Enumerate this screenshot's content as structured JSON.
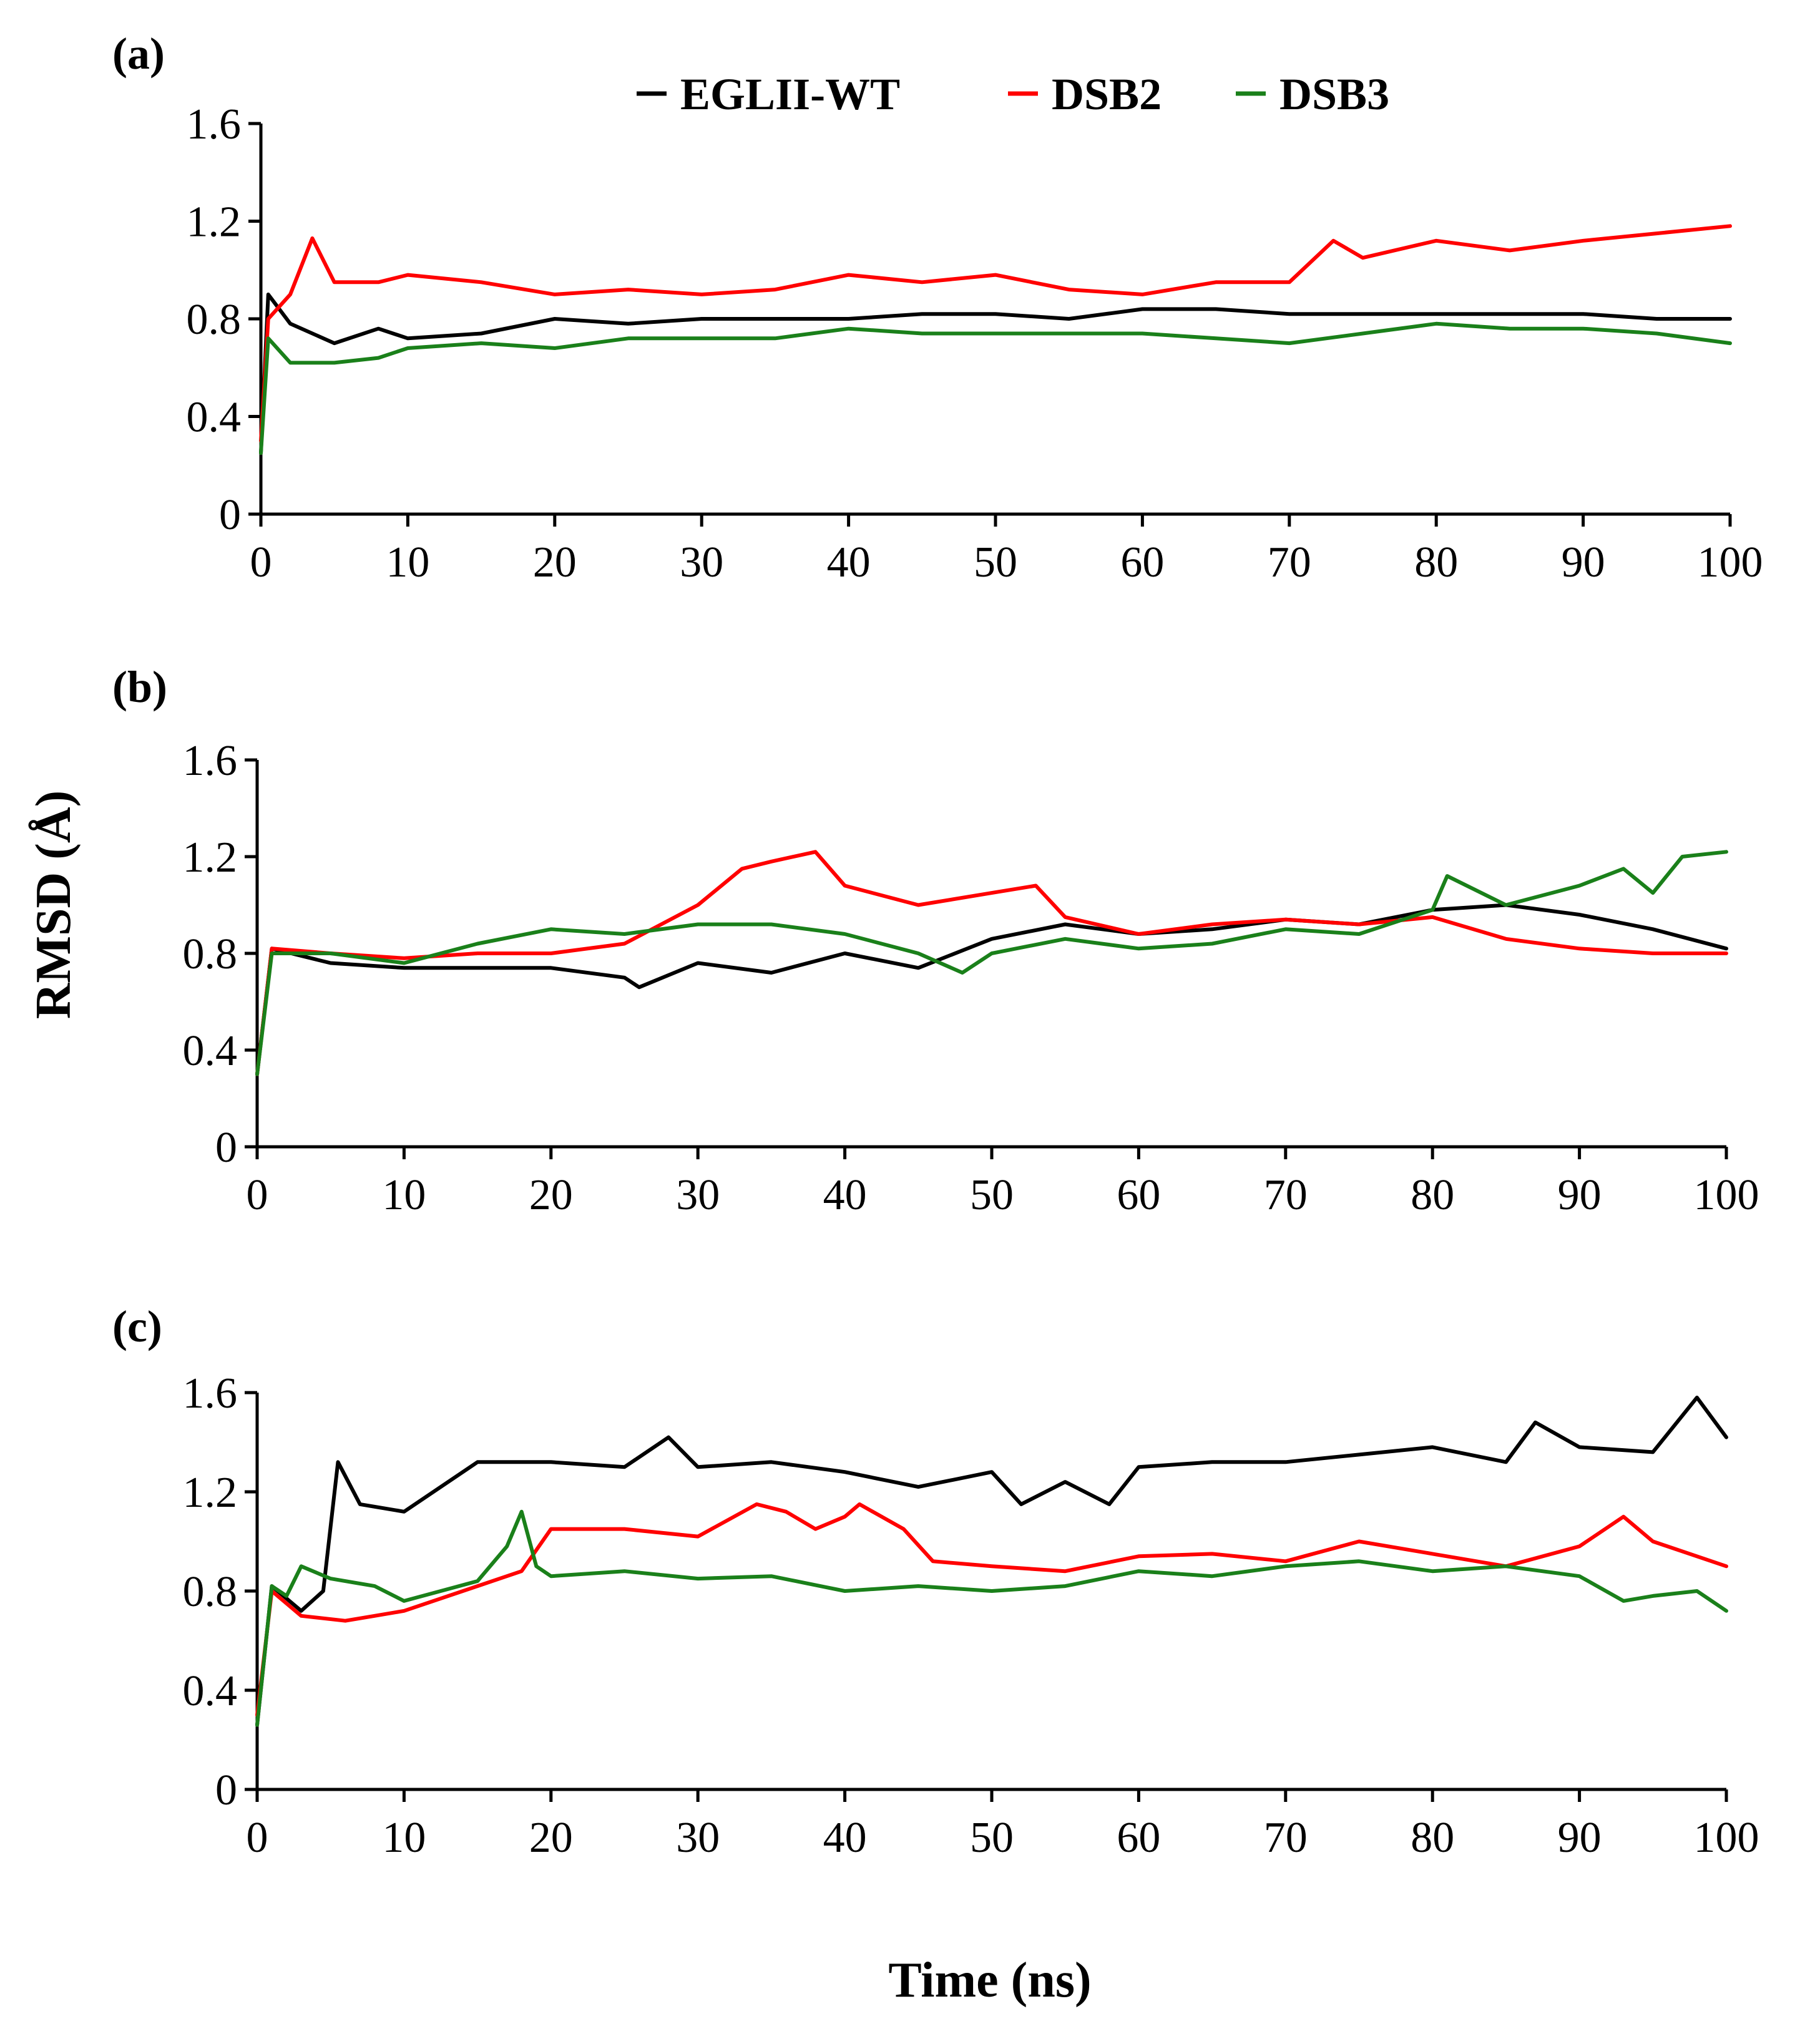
{
  "figure": {
    "xlabel": "Time (ns)",
    "ylabel": "RMSD (Å)"
  },
  "legend": [
    {
      "name": "EGLII-WT",
      "color": "#000000"
    },
    {
      "name": "DSB2",
      "color": "#ff0000"
    },
    {
      "name": "DSB3",
      "color": "#1a801a"
    }
  ],
  "chart_data": [
    {
      "type": "line",
      "panel": "(a)",
      "xlabel": "Time (ns)",
      "ylabel": "RMSD (Å)",
      "xlim": [
        0,
        100
      ],
      "ylim": [
        0,
        1.6
      ],
      "xticks": [
        "0",
        "10",
        "20",
        "30",
        "40",
        "50",
        "60",
        "70",
        "80",
        "90",
        "100"
      ],
      "yticks": [
        "0",
        "0.4",
        "0.8",
        "1.2",
        "1.6"
      ],
      "series": [
        {
          "name": "EGLII-WT",
          "color": "#000000",
          "x": [
            0,
            0.5,
            2,
            5,
            8,
            10,
            15,
            20,
            25,
            30,
            35,
            40,
            45,
            50,
            55,
            60,
            65,
            70,
            75,
            80,
            85,
            90,
            95,
            100
          ],
          "y": [
            0.25,
            0.9,
            0.78,
            0.7,
            0.76,
            0.72,
            0.74,
            0.8,
            0.78,
            0.8,
            0.8,
            0.8,
            0.82,
            0.82,
            0.8,
            0.84,
            0.84,
            0.82,
            0.82,
            0.82,
            0.82,
            0.82,
            0.8,
            0.8
          ]
        },
        {
          "name": "DSB2",
          "color": "#ff0000",
          "x": [
            0,
            0.5,
            2,
            3.5,
            5,
            8,
            10,
            15,
            20,
            25,
            30,
            35,
            40,
            45,
            50,
            55,
            60,
            65,
            70,
            73,
            75,
            80,
            85,
            90,
            95,
            100
          ],
          "y": [
            0.3,
            0.8,
            0.9,
            1.13,
            0.95,
            0.95,
            0.98,
            0.95,
            0.9,
            0.92,
            0.9,
            0.92,
            0.98,
            0.95,
            0.98,
            0.92,
            0.9,
            0.95,
            0.95,
            1.12,
            1.05,
            1.12,
            1.08,
            1.12,
            1.15,
            1.18
          ]
        },
        {
          "name": "DSB3",
          "color": "#1a801a",
          "x": [
            0,
            0.5,
            2,
            5,
            8,
            10,
            15,
            20,
            25,
            30,
            35,
            40,
            45,
            50,
            55,
            60,
            65,
            70,
            75,
            80,
            85,
            90,
            95,
            100
          ],
          "y": [
            0.25,
            0.72,
            0.62,
            0.62,
            0.64,
            0.68,
            0.7,
            0.68,
            0.72,
            0.72,
            0.72,
            0.76,
            0.74,
            0.74,
            0.74,
            0.74,
            0.72,
            0.7,
            0.74,
            0.78,
            0.76,
            0.76,
            0.74,
            0.7
          ]
        }
      ]
    },
    {
      "type": "line",
      "panel": "(b)",
      "xlabel": "Time (ns)",
      "ylabel": "RMSD (Å)",
      "xlim": [
        0,
        100
      ],
      "ylim": [
        0,
        1.6
      ],
      "xticks": [
        "0",
        "10",
        "20",
        "30",
        "40",
        "50",
        "60",
        "70",
        "80",
        "90",
        "100"
      ],
      "yticks": [
        "0",
        "0.4",
        "0.8",
        "1.2",
        "1.6"
      ],
      "series": [
        {
          "name": "EGLII-WT",
          "color": "#000000",
          "x": [
            0,
            1,
            5,
            10,
            15,
            20,
            25,
            26,
            30,
            35,
            40,
            45,
            50,
            55,
            60,
            65,
            70,
            75,
            80,
            85,
            90,
            95,
            100
          ],
          "y": [
            0.3,
            0.82,
            0.76,
            0.74,
            0.74,
            0.74,
            0.7,
            0.66,
            0.76,
            0.72,
            0.8,
            0.74,
            0.86,
            0.92,
            0.88,
            0.9,
            0.94,
            0.92,
            0.98,
            1.0,
            0.96,
            0.9,
            0.82
          ]
        },
        {
          "name": "DSB2",
          "color": "#ff0000",
          "x": [
            0,
            1,
            5,
            10,
            15,
            20,
            25,
            30,
            33,
            35,
            38,
            40,
            45,
            50,
            53,
            55,
            60,
            65,
            70,
            75,
            80,
            85,
            90,
            95,
            100
          ],
          "y": [
            0.3,
            0.82,
            0.8,
            0.78,
            0.8,
            0.8,
            0.84,
            1.0,
            1.15,
            1.18,
            1.22,
            1.08,
            1.0,
            1.05,
            1.08,
            0.95,
            0.88,
            0.92,
            0.94,
            0.92,
            0.95,
            0.86,
            0.82,
            0.8,
            0.8
          ]
        },
        {
          "name": "DSB3",
          "color": "#1a801a",
          "x": [
            0,
            1,
            5,
            10,
            15,
            20,
            25,
            30,
            35,
            40,
            45,
            48,
            50,
            55,
            60,
            65,
            70,
            75,
            80,
            81,
            85,
            90,
            93,
            95,
            97,
            100
          ],
          "y": [
            0.3,
            0.8,
            0.8,
            0.76,
            0.84,
            0.9,
            0.88,
            0.92,
            0.92,
            0.88,
            0.8,
            0.72,
            0.8,
            0.86,
            0.82,
            0.84,
            0.9,
            0.88,
            0.98,
            1.12,
            1.0,
            1.08,
            1.15,
            1.05,
            1.2,
            1.22
          ]
        }
      ]
    },
    {
      "type": "line",
      "panel": "(c)",
      "xlabel": "Time (ns)",
      "ylabel": "RMSD (Å)",
      "xlim": [
        0,
        100
      ],
      "ylim": [
        0,
        1.6
      ],
      "xticks": [
        "0",
        "10",
        "20",
        "30",
        "40",
        "50",
        "60",
        "70",
        "80",
        "90",
        "100"
      ],
      "yticks": [
        "0",
        "0.4",
        "0.8",
        "1.2",
        "1.6"
      ],
      "series": [
        {
          "name": "EGLII-WT",
          "color": "#000000",
          "x": [
            0,
            1,
            3,
            4.5,
            5.5,
            7,
            10,
            15,
            20,
            25,
            28,
            30,
            35,
            40,
            45,
            50,
            52,
            55,
            58,
            60,
            65,
            70,
            75,
            80,
            85,
            87,
            90,
            95,
            98,
            100
          ],
          "y": [
            0.26,
            0.82,
            0.72,
            0.8,
            1.32,
            1.15,
            1.12,
            1.32,
            1.32,
            1.3,
            1.42,
            1.3,
            1.32,
            1.28,
            1.22,
            1.28,
            1.15,
            1.24,
            1.15,
            1.3,
            1.32,
            1.32,
            1.35,
            1.38,
            1.32,
            1.48,
            1.38,
            1.36,
            1.58,
            1.42
          ]
        },
        {
          "name": "DSB2",
          "color": "#ff0000",
          "x": [
            0,
            1,
            3,
            6,
            8,
            10,
            15,
            18,
            20,
            25,
            30,
            34,
            36,
            38,
            40,
            41,
            44,
            46,
            50,
            55,
            60,
            65,
            70,
            75,
            80,
            85,
            90,
            93,
            95,
            100
          ],
          "y": [
            0.3,
            0.8,
            0.7,
            0.68,
            0.7,
            0.72,
            0.82,
            0.88,
            1.05,
            1.05,
            1.02,
            1.15,
            1.12,
            1.05,
            1.1,
            1.15,
            1.05,
            0.92,
            0.9,
            0.88,
            0.94,
            0.95,
            0.92,
            1.0,
            0.95,
            0.9,
            0.98,
            1.1,
            1.0,
            0.9
          ]
        },
        {
          "name": "DSB3",
          "color": "#1a801a",
          "x": [
            0,
            1,
            2,
            3,
            5,
            8,
            10,
            15,
            17,
            18,
            19,
            20,
            25,
            30,
            35,
            40,
            45,
            50,
            55,
            60,
            65,
            70,
            75,
            80,
            85,
            90,
            93,
            95,
            98,
            100
          ],
          "y": [
            0.26,
            0.82,
            0.78,
            0.9,
            0.85,
            0.82,
            0.76,
            0.84,
            0.98,
            1.12,
            0.9,
            0.86,
            0.88,
            0.85,
            0.86,
            0.8,
            0.82,
            0.8,
            0.82,
            0.88,
            0.86,
            0.9,
            0.92,
            0.88,
            0.9,
            0.86,
            0.76,
            0.78,
            0.8,
            0.72
          ]
        }
      ]
    }
  ]
}
